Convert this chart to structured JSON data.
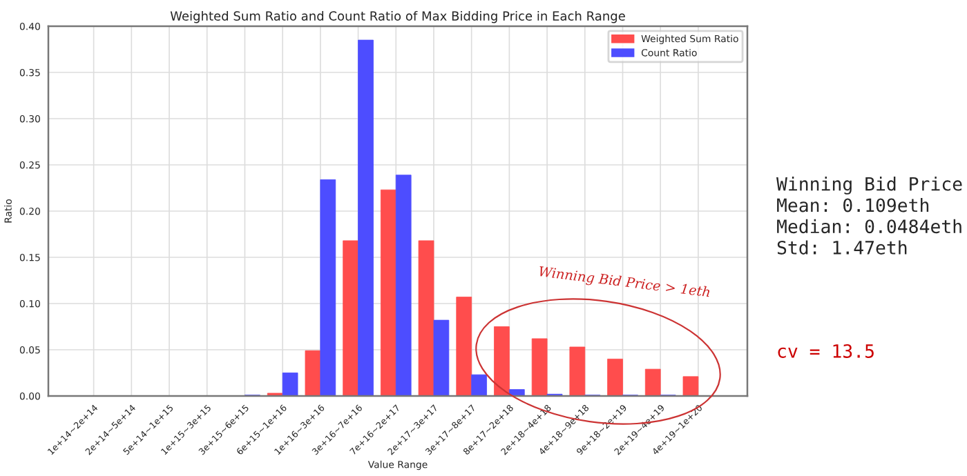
{
  "chart_data": {
    "type": "bar",
    "title": "Weighted Sum Ratio and Count Ratio of Max Bidding Price in Each Range",
    "xlabel": "Value Range",
    "ylabel": "Ratio",
    "categories": [
      "1e+14~2e+14",
      "2e+14~5e+14",
      "5e+14~1e+15",
      "1e+15~3e+15",
      "3e+15~6e+15",
      "6e+15~1e+16",
      "1e+16~3e+16",
      "3e+16~7e+16",
      "7e+16~2e+17",
      "2e+17~3e+17",
      "3e+17~8e+17",
      "8e+17~2e+18",
      "2e+18~4e+18",
      "4e+18~9e+18",
      "9e+18~2e+19",
      "2e+19~4e+19",
      "4e+19~1e+20"
    ],
    "series": [
      {
        "name": "Weighted Sum Ratio",
        "color": "#ff4d4d",
        "values": [
          0,
          0,
          0,
          0,
          0,
          0.003,
          0.049,
          0.168,
          0.223,
          0.168,
          0.107,
          0.075,
          0.062,
          0.053,
          0.04,
          0.029,
          0.021
        ]
      },
      {
        "name": "Count Ratio",
        "color": "#4d4dff",
        "values": [
          0,
          0,
          0,
          0,
          0.001,
          0.025,
          0.234,
          0.385,
          0.239,
          0.082,
          0.023,
          0.007,
          0.002,
          0.001,
          0.001,
          0.001,
          0
        ]
      }
    ],
    "ylim": [
      0,
      0.4
    ],
    "yticks": [
      {
        "value": 0,
        "label": "0.00"
      },
      {
        "value": 0.05,
        "label": "0.05"
      },
      {
        "value": 0.1,
        "label": "0.10"
      },
      {
        "value": 0.15,
        "label": "0.15"
      },
      {
        "value": 0.2,
        "label": "0.20"
      },
      {
        "value": 0.25,
        "label": "0.25"
      },
      {
        "value": 0.3,
        "label": "0.30"
      },
      {
        "value": 0.35,
        "label": "0.35"
      },
      {
        "value": 0.4,
        "label": "0.40"
      }
    ],
    "grid": true,
    "legend": "top right",
    "annotations": [
      "Winning Bid Price > 1eth",
      "Winning Bid Price\nMean: 0.109eth\nMedian: 0.0484eth\nStd: 1.47eth",
      "cv = 13.5"
    ]
  }
}
